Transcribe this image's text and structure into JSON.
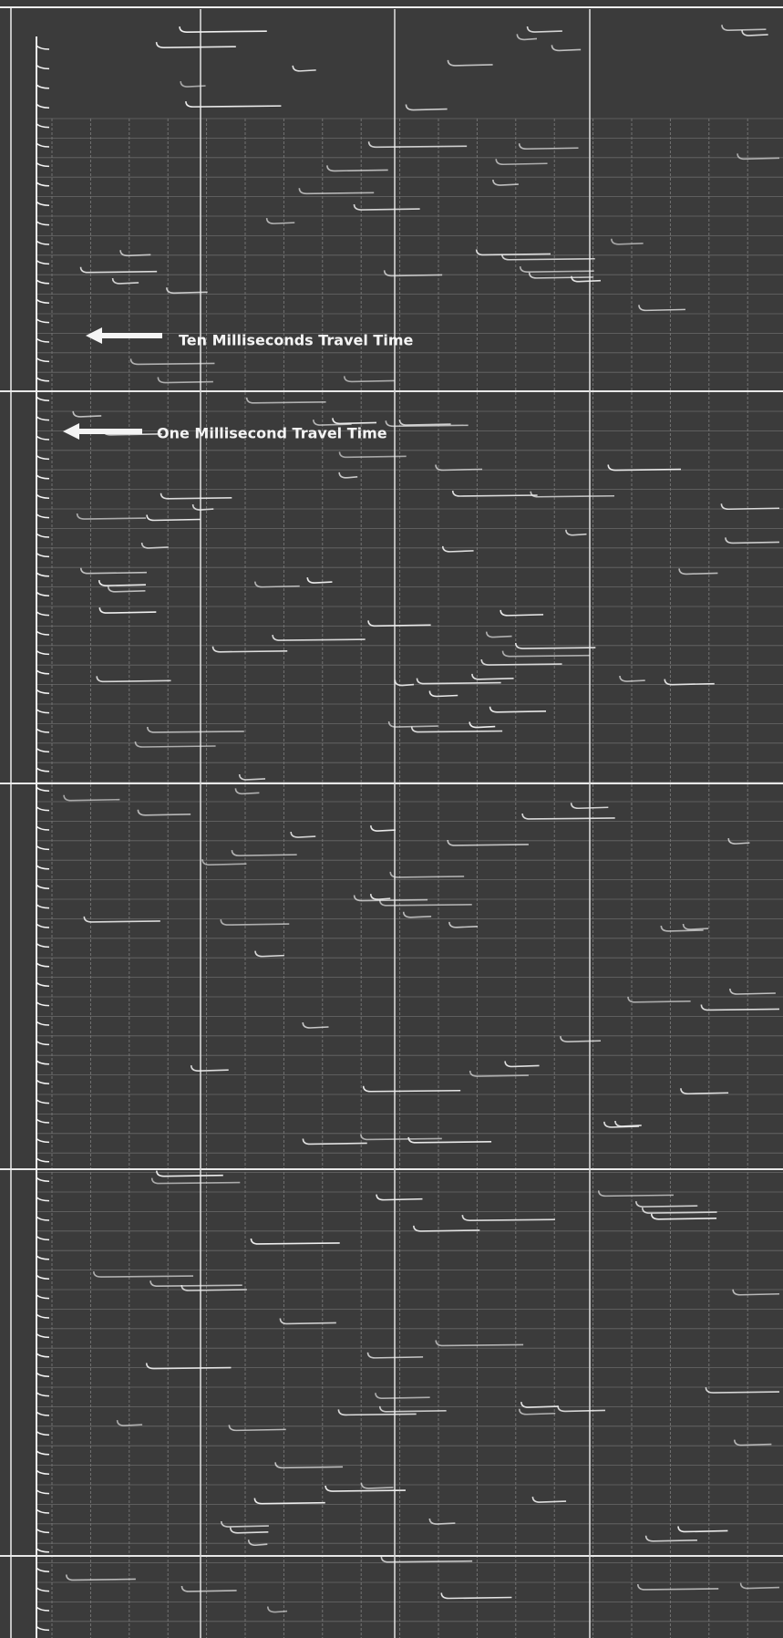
{
  "annotations": [
    {
      "text": "Ten Milliseconds Travel Time"
    },
    {
      "text": "One Millisecond Travel Time"
    }
  ]
}
